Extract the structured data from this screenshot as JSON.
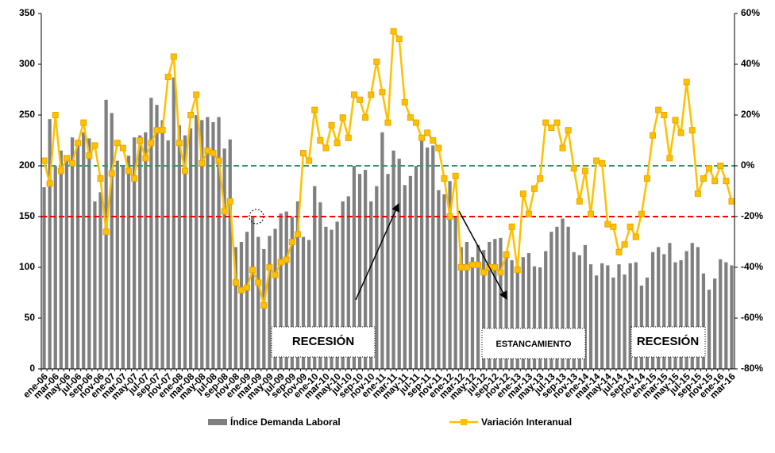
{
  "chart_data": {
    "type": "bar_line",
    "categories": [
      "ene-06",
      null,
      "mar-06",
      null,
      "may-06",
      null,
      "jul-06",
      null,
      "sep-06",
      null,
      "nov-06",
      null,
      "ene-07",
      null,
      "mar-07",
      null,
      "may-07",
      null,
      "jul-07",
      null,
      "sep-07",
      null,
      "nov-07",
      null,
      "ene-08",
      null,
      "mar-08",
      null,
      "may-08",
      null,
      "jul-08",
      null,
      "sep-08",
      null,
      "nov-08",
      null,
      "ene-09",
      null,
      "mar-09",
      null,
      "may-09",
      null,
      "jul-09",
      null,
      "sep-09",
      null,
      "nov-09",
      null,
      "ene-10",
      null,
      "mar-10",
      null,
      "may-10",
      null,
      "jul-10",
      null,
      "sep-10",
      null,
      "nov-10",
      null,
      "ene-11",
      null,
      "mar-11",
      null,
      "may-11",
      null,
      "jul-11",
      null,
      "sep-11",
      null,
      "nov-11",
      null,
      "ene-12",
      null,
      "mar-12",
      null,
      "may-12",
      null,
      "jul-12",
      null,
      "sep-12",
      null,
      "nov-12",
      null,
      "ene-13",
      null,
      "mar-13",
      null,
      "may-13",
      null,
      "jul-13",
      null,
      "sep-13",
      null,
      "nov-13",
      null,
      "ene-14",
      null,
      "mar-14",
      null,
      "may-14",
      null,
      "jul-14",
      null,
      "sep-14",
      null,
      "nov-14",
      null,
      "ene-15",
      null,
      "mar-15",
      null,
      "may-15",
      null,
      "jul-15",
      null,
      "sep-15",
      null,
      "nov-15",
      null,
      "ene-16",
      null,
      "mar-16"
    ],
    "series": [
      {
        "name": "Índice Demanda Laboral",
        "type": "bar",
        "color": "#808080",
        "values": [
          179,
          246,
          200,
          215,
          205,
          228,
          222,
          233,
          227,
          165,
          174,
          265,
          252,
          205,
          200,
          210,
          228,
          230,
          233,
          267,
          260,
          245,
          225,
          287,
          240,
          230,
          237,
          250,
          245,
          248,
          243,
          248,
          217,
          226,
          120,
          125,
          135,
          150,
          130,
          118,
          131,
          138,
          153,
          155,
          150,
          165,
          130,
          127,
          180,
          164,
          140,
          137,
          145,
          165,
          170,
          200,
          192,
          196,
          165,
          180,
          233,
          192,
          215,
          207,
          181,
          190,
          200,
          225,
          218,
          220,
          176,
          172,
          185,
          150,
          120,
          125,
          110,
          122,
          117,
          125,
          128,
          129,
          115,
          107,
          102,
          110,
          114,
          101,
          100,
          116,
          135,
          140,
          148,
          140,
          115,
          112,
          122,
          103,
          92,
          104,
          102,
          90,
          103,
          93,
          104,
          105,
          82,
          90,
          115,
          120,
          113,
          124,
          105,
          107,
          116,
          124,
          120,
          94,
          78,
          89,
          108,
          105,
          102
        ]
      },
      {
        "name": "Variación Interanual",
        "type": "line",
        "axis": "y2",
        "color": "#ffc000",
        "values": [
          2,
          -7,
          20,
          -2,
          3,
          1,
          9,
          17,
          4,
          8,
          -5,
          -26,
          -3,
          9,
          7,
          -2,
          -5,
          10,
          3,
          9,
          14,
          14,
          35,
          43,
          9,
          -2,
          20,
          28,
          1,
          6,
          5,
          2,
          -18,
          -14,
          -46,
          -49,
          -48,
          -41,
          -46,
          -55,
          -40,
          -43,
          -38,
          -37,
          -30,
          -27,
          5,
          2,
          22,
          10,
          7,
          16,
          9,
          19,
          11,
          28,
          26,
          19,
          28,
          41,
          29,
          17,
          53,
          50,
          25,
          19,
          17,
          11,
          13,
          10,
          7,
          -5,
          -20,
          -4,
          -40,
          -40,
          -39,
          -39,
          -42,
          -40,
          -40,
          -42,
          -35,
          -24,
          -41,
          -11,
          -19,
          -9,
          -5,
          17,
          15,
          17,
          7,
          14,
          -1,
          -14,
          -2,
          -19,
          2,
          1,
          -23,
          -24,
          -34,
          -31,
          -24,
          -28,
          -19,
          -5,
          12,
          22,
          20,
          3,
          18,
          13,
          33,
          14,
          -11,
          -5,
          -1,
          -6,
          0,
          -6,
          -14
        ]
      }
    ],
    "ylim": [
      0,
      350
    ],
    "yticks": [
      0,
      50,
      100,
      150,
      200,
      250,
      300,
      350
    ],
    "y2lim": [
      -80,
      60
    ],
    "y2ticks": [
      {
        "value": -80,
        "label": "-80%"
      },
      {
        "value": -60,
        "label": "-60%"
      },
      {
        "value": -40,
        "label": "-40%"
      },
      {
        "value": -20,
        "label": "-20%"
      },
      {
        "value": 0,
        "label": "0%"
      },
      {
        "value": 20,
        "label": "20%"
      },
      {
        "value": 40,
        "label": "40%"
      },
      {
        "value": 60,
        "label": "60%"
      }
    ],
    "reference_lines": [
      {
        "axis": "y2",
        "value": 0,
        "color": "#339966"
      },
      {
        "axis": "y2",
        "value": -20,
        "color": "#ff0000"
      }
    ],
    "annotations": [
      "RECESIÓN",
      "ESTANCAMIENTO",
      "RECESIÓN"
    ],
    "legend": "bottom"
  }
}
